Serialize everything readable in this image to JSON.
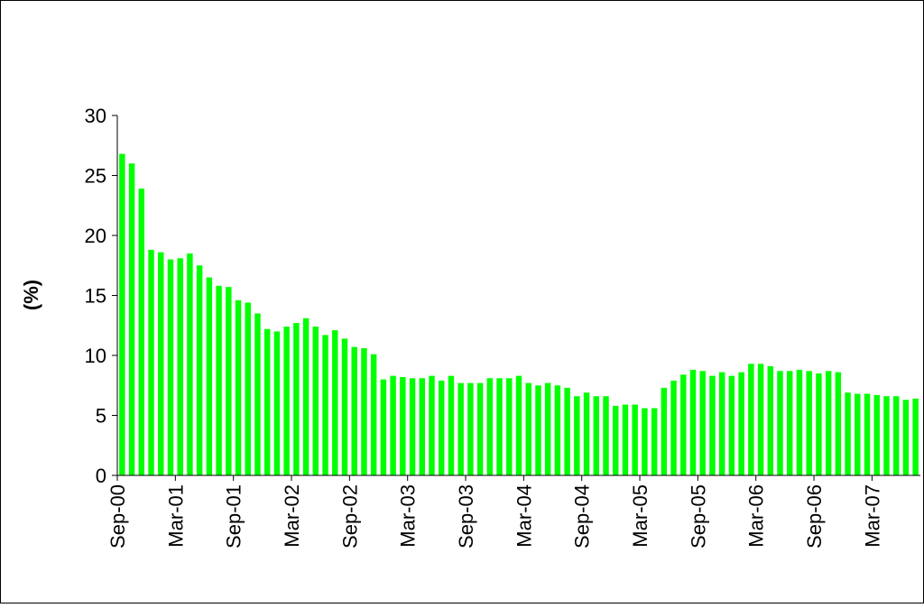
{
  "chart_data": {
    "type": "bar",
    "y_label": "(%)",
    "categories": [
      "Sep-00",
      null,
      null,
      null,
      null,
      null,
      "Mar-01",
      null,
      null,
      null,
      null,
      null,
      "Sep-01",
      null,
      null,
      null,
      null,
      null,
      "Mar-02",
      null,
      null,
      null,
      null,
      null,
      "Sep-02",
      null,
      null,
      null,
      null,
      null,
      "Mar-03",
      null,
      null,
      null,
      null,
      null,
      "Sep-03",
      null,
      null,
      null,
      null,
      null,
      "Mar-04",
      null,
      null,
      null,
      null,
      null,
      "Sep-04",
      null,
      null,
      null,
      null,
      null,
      "Mar-05",
      null,
      null,
      null,
      null,
      null,
      "Sep-05",
      null,
      null,
      null,
      null,
      null,
      "Mar-06",
      null,
      null,
      null,
      null,
      null,
      "Sep-06",
      null,
      null,
      null,
      null,
      null,
      "Mar-07",
      null,
      null,
      null,
      null
    ],
    "values": [
      26.8,
      26.0,
      23.9,
      18.8,
      18.6,
      18.0,
      18.1,
      18.5,
      17.5,
      16.5,
      15.8,
      15.7,
      14.6,
      14.4,
      13.5,
      12.2,
      12.0,
      12.4,
      12.7,
      13.1,
      12.4,
      11.7,
      12.1,
      11.4,
      10.7,
      10.6,
      10.1,
      8.0,
      8.3,
      8.2,
      8.1,
      8.1,
      8.3,
      7.9,
      8.3,
      7.7,
      7.7,
      7.7,
      8.1,
      8.1,
      8.1,
      8.3,
      7.7,
      7.5,
      7.7,
      7.5,
      7.3,
      6.6,
      6.9,
      6.6,
      6.6,
      5.8,
      5.9,
      5.9,
      5.6,
      5.6,
      7.3,
      7.9,
      8.4,
      8.8,
      8.7,
      8.3,
      8.6,
      8.3,
      8.6,
      9.3,
      9.3,
      9.1,
      8.7,
      8.7,
      8.8,
      8.7,
      8.5,
      8.7,
      8.6,
      6.9,
      6.8,
      6.8,
      6.7,
      6.6,
      6.6,
      6.3,
      6.4
    ],
    "color": "#00ff00",
    "ylim": [
      0,
      30
    ],
    "yticks": [
      0,
      5,
      10,
      15,
      20,
      25,
      30
    ]
  }
}
